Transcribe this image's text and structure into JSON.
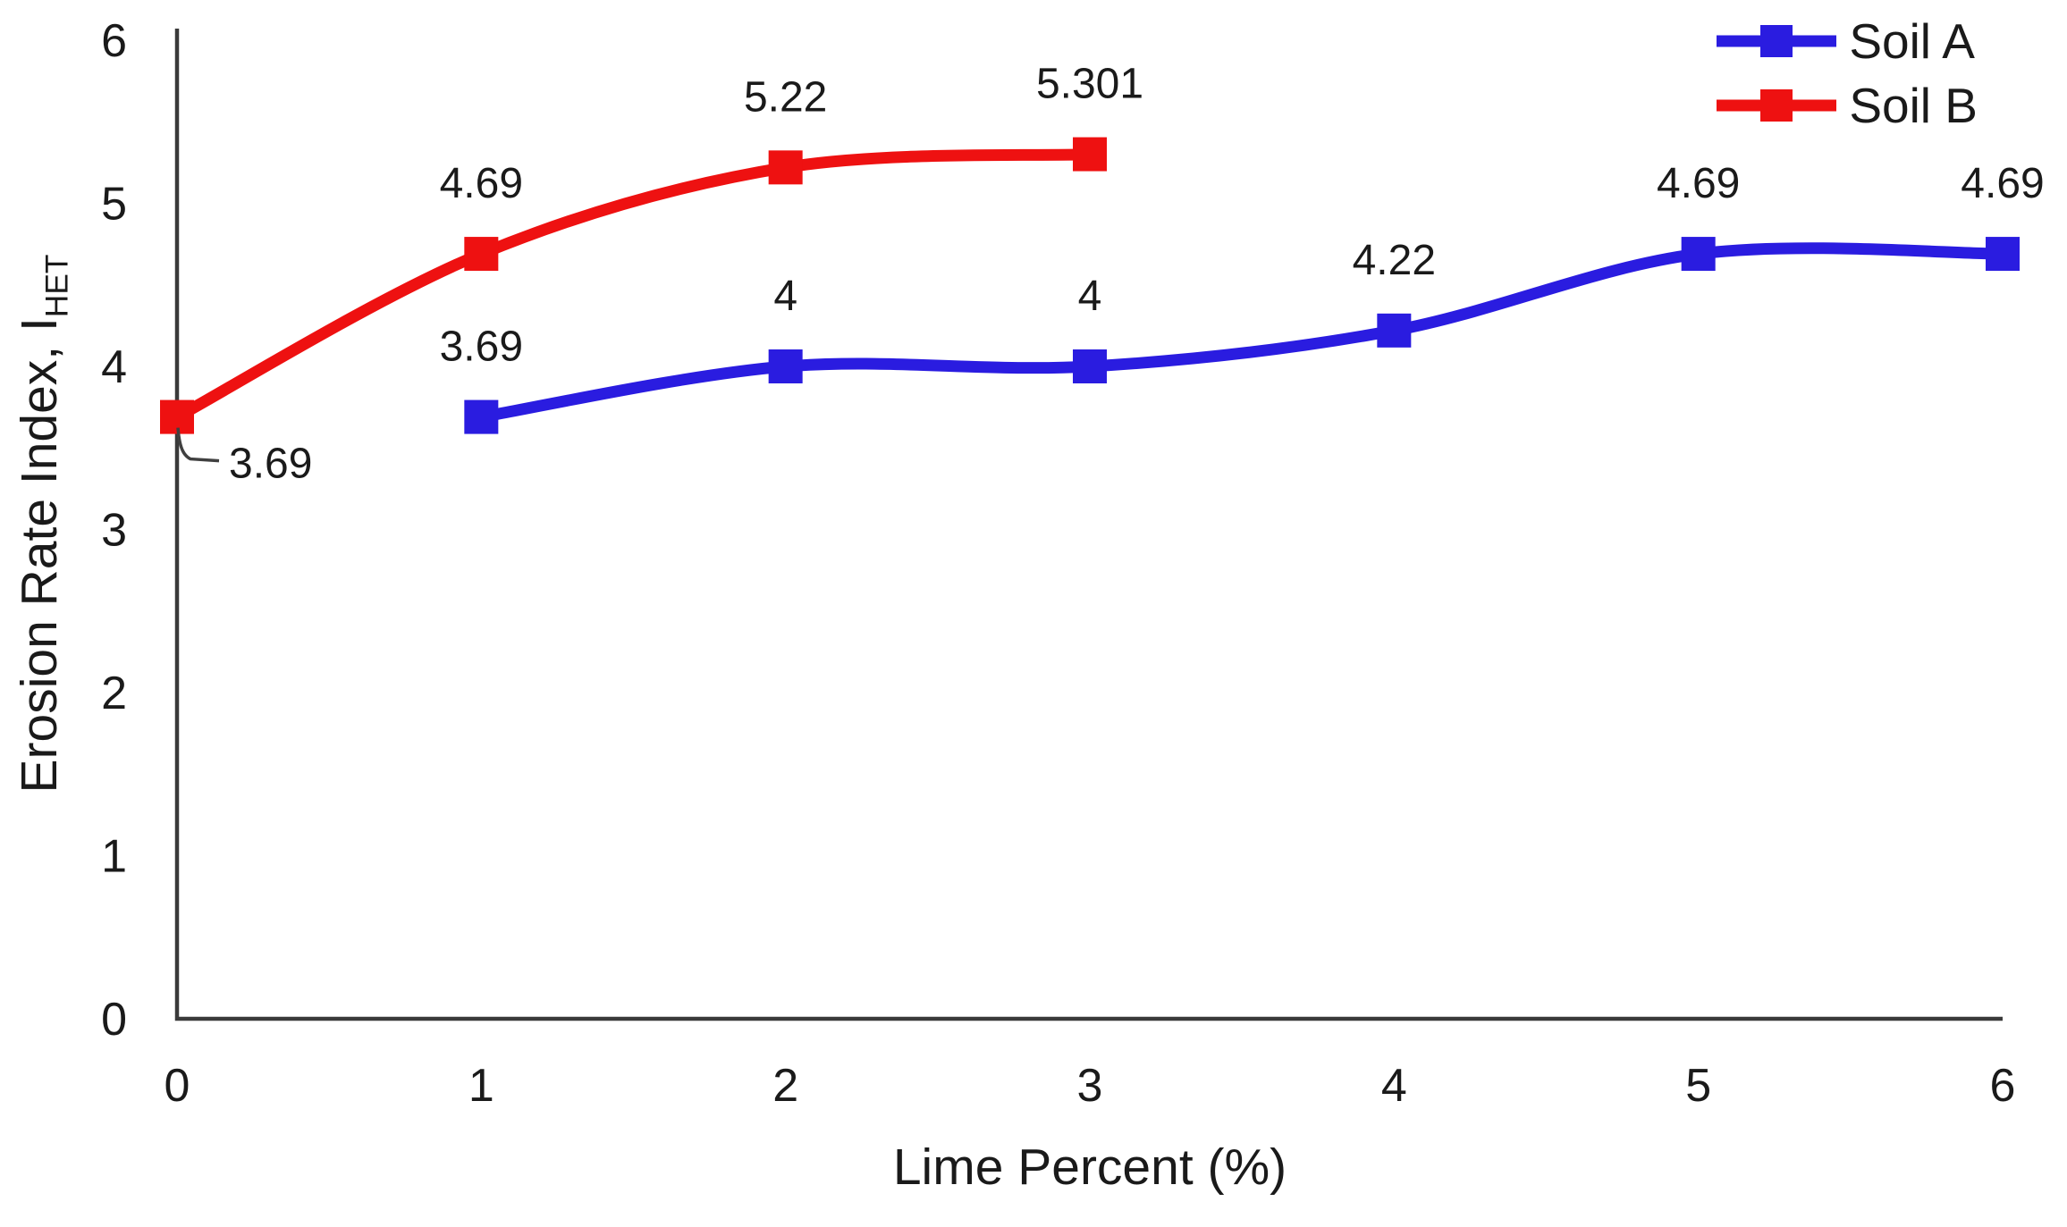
{
  "chart_data": {
    "type": "line",
    "title": "",
    "xlabel": "Lime Percent (%)",
    "ylabel": "Erosion Rate Index, I",
    "ylabel_subscript": "HET",
    "xlim": [
      0,
      6
    ],
    "ylim": [
      0,
      6
    ],
    "xticks": [
      "0",
      "1",
      "2",
      "3",
      "4",
      "5",
      "6"
    ],
    "yticks": [
      "0",
      "1",
      "2",
      "3",
      "4",
      "5",
      "6"
    ],
    "grid": false,
    "legend_position": "top-right",
    "line_style": "smooth",
    "marker_shape": "square",
    "axis_color": "#3a3a3a",
    "text_color": "#1a1a1a",
    "series": [
      {
        "name": "Soil A",
        "color": "#2a1ce0",
        "x": [
          1,
          2,
          3,
          4,
          5,
          6
        ],
        "y": [
          3.69,
          4,
          4,
          4.22,
          4.69,
          4.69
        ],
        "point_labels": [
          "3.69",
          "4",
          "4",
          "4.22",
          "4.69",
          "4.69"
        ]
      },
      {
        "name": "Soil B",
        "color": "#ee1111",
        "x": [
          0,
          1,
          2,
          3
        ],
        "y": [
          3.69,
          4.69,
          5.22,
          5.301
        ],
        "point_labels": [
          "3.69",
          "4.69",
          "5.22",
          "5.301"
        ],
        "callout_point_index": 0
      }
    ]
  }
}
